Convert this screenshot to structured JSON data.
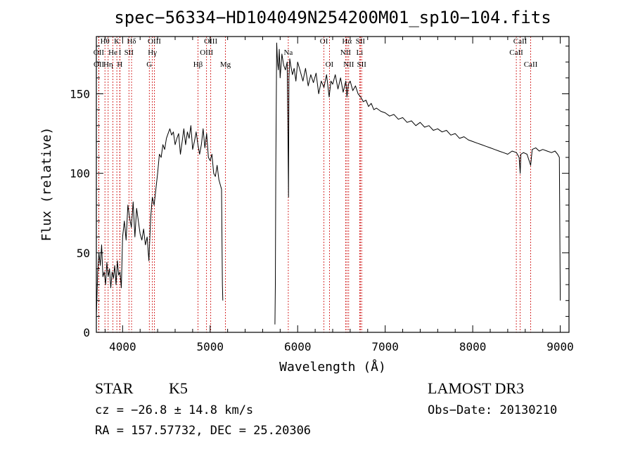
{
  "chart_data": {
    "type": "line",
    "title": "spec−56334−HD104049N254200M01_sp10−104.fits",
    "xlabel": "Wavelength (Å)",
    "ylabel": "Flux (relative)",
    "xlim": [
      3700,
      9100
    ],
    "ylim": [
      0,
      186
    ],
    "xticks": [
      4000,
      5000,
      6000,
      7000,
      8000,
      9000
    ],
    "yticks": [
      0,
      50,
      100,
      150
    ],
    "grid": false,
    "series": [
      {
        "name": "flux",
        "segments": [
          {
            "x": [
              3700,
              3715,
              3730,
              3745,
              3760,
              3775,
              3790,
              3805,
              3820,
              3835,
              3850,
              3865,
              3880,
              3895,
              3910,
              3925,
              3940,
              3955,
              3970,
              3985,
              4000,
              4020,
              4040,
              4060,
              4080,
              4100,
              4120,
              4140,
              4160,
              4180,
              4200,
              4220,
              4240,
              4260,
              4280,
              4300,
              4320,
              4340,
              4360,
              4380,
              4400,
              4420,
              4440,
              4460,
              4480,
              4500,
              4520,
              4540,
              4560,
              4580,
              4600,
              4620,
              4640,
              4660,
              4680,
              4700,
              4720,
              4740,
              4760,
              4780,
              4800,
              4820,
              4840,
              4860,
              4880,
              4900,
              4920,
              4940,
              4960,
              4980,
              5000,
              5020,
              5040,
              5060,
              5080,
              5100,
              5120,
              5130,
              5135,
              5140,
              5145
            ],
            "y": [
              10,
              38,
              50,
              42,
              55,
              35,
              38,
              30,
              44,
              35,
              40,
              28,
              38,
              34,
              42,
              30,
              45,
              36,
              38,
              28,
              60,
              70,
              58,
              80,
              72,
              66,
              82,
              60,
              78,
              70,
              62,
              58,
              65,
              55,
              60,
              45,
              72,
              85,
              80,
              90,
              100,
              112,
              110,
              118,
              115,
              122,
              125,
              128,
              124,
              126,
              118,
              122,
              125,
              112,
              120,
              128,
              118,
              126,
              122,
              130,
              115,
              120,
              126,
              118,
              112,
              118,
              128,
              116,
              125,
              110,
              108,
              112,
              100,
              98,
              105,
              96,
              92,
              90,
              60,
              30,
              20
            ]
          },
          {
            "x": [
              5740,
              5745,
              5750,
              5760,
              5770,
              5780,
              5790,
              5800,
              5820,
              5840,
              5860,
              5880,
              5890,
              5895,
              5900,
              5910,
              5920,
              5940,
              5960,
              5980,
              6000,
              6030,
              6060,
              6090,
              6120,
              6150,
              6180,
              6210,
              6240,
              6270,
              6300,
              6330,
              6360,
              6380,
              6400,
              6430,
              6460,
              6490,
              6520,
              6550,
              6563,
              6580,
              6600,
              6630,
              6660,
              6690,
              6720,
              6750,
              6780,
              6810,
              6840,
              6870,
              6900,
              6950,
              7000,
              7050,
              7100,
              7150,
              7200,
              7250,
              7300,
              7350,
              7400,
              7450,
              7500,
              7550,
              7600,
              7650,
              7700,
              7750,
              7800,
              7850,
              7900,
              7950,
              8000,
              8050,
              8100,
              8150,
              8200,
              8250,
              8300,
              8350,
              8400,
              8450,
              8500,
              8530,
              8542,
              8550,
              8580,
              8620,
              8662,
              8680,
              8720,
              8760,
              8800,
              8850,
              8900,
              8940,
              8970,
              8990,
              9000
            ],
            "y": [
              5,
              30,
              100,
              182,
              170,
              165,
              178,
              160,
              175,
              168,
              165,
              170,
              120,
              85,
              160,
              172,
              168,
              162,
              166,
              158,
              170,
              164,
              158,
              166,
              155,
              162,
              157,
              163,
              150,
              158,
              154,
              162,
              148,
              158,
              156,
              162,
              153,
              160,
              151,
              158,
              148,
              156,
              158,
              152,
              155,
              150,
              148,
              145,
              146,
              142,
              144,
              140,
              141,
              139,
              138,
              136,
              137,
              134,
              135,
              132,
              133,
              130,
              132,
              129,
              130,
              127,
              128,
              126,
              127,
              124,
              125,
              122,
              123,
              121,
              120,
              119,
              118,
              117,
              116,
              115,
              114,
              113,
              112,
              114,
              113,
              110,
              100,
              112,
              113,
              112,
              105,
              115,
              116,
              114,
              115,
              114,
              113,
              114,
              112,
              110,
              20
            ]
          }
        ]
      }
    ],
    "line_markers": [
      {
        "label": "Hθ",
        "wavelength": 3798,
        "row": 1
      },
      {
        "label": "OII",
        "wavelength": 3727,
        "row": 2
      },
      {
        "label": "OII",
        "wavelength": 3729,
        "row": 3
      },
      {
        "label": "He",
        "wavelength": 3889,
        "row": 2
      },
      {
        "label": "K",
        "wavelength": 3934,
        "row": 1
      },
      {
        "label": "Hη",
        "wavelength": 3835,
        "row": 3
      },
      {
        "label": "H",
        "wavelength": 3968,
        "row": 3
      },
      {
        "label": "I",
        "wavelength": 3970,
        "row": 2
      },
      {
        "label": "SII",
        "wavelength": 4072,
        "row": 2
      },
      {
        "label": "Hδ",
        "wavelength": 4102,
        "row": 1
      },
      {
        "label": "OIII",
        "wavelength": 4363,
        "row": 1
      },
      {
        "label": "Hγ",
        "wavelength": 4340,
        "row": 2
      },
      {
        "label": "G",
        "wavelength": 4305,
        "row": 3
      },
      {
        "label": "Hβ",
        "wavelength": 4861,
        "row": 3
      },
      {
        "label": "OIII",
        "wavelength": 4959,
        "row": 2
      },
      {
        "label": "OIII",
        "wavelength": 5007,
        "row": 1
      },
      {
        "label": "Mg",
        "wavelength": 5175,
        "row": 3
      },
      {
        "label": "Na",
        "wavelength": 5893,
        "row": 2
      },
      {
        "label": "OI",
        "wavelength": 6300,
        "row": 1
      },
      {
        "label": "OI",
        "wavelength": 6363,
        "row": 3
      },
      {
        "label": "Hα",
        "wavelength": 6563,
        "row": 1
      },
      {
        "label": "NII",
        "wavelength": 6548,
        "row": 2
      },
      {
        "label": "NII",
        "wavelength": 6583,
        "row": 3
      },
      {
        "label": "SII",
        "wavelength": 6716,
        "row": 1
      },
      {
        "label": "Li",
        "wavelength": 6708,
        "row": 2
      },
      {
        "label": "SII",
        "wavelength": 6731,
        "row": 3
      },
      {
        "label": "CaII",
        "wavelength": 8542,
        "row": 1
      },
      {
        "label": "CaII",
        "wavelength": 8498,
        "row": 2
      },
      {
        "label": "CaII",
        "wavelength": 8662,
        "row": 3
      }
    ]
  },
  "info": {
    "class_label": "STAR",
    "subclass": "K5",
    "cz": "cz = −26.8 ± 14.8 km/s",
    "coords": "RA = 157.57732, DEC =  25.20306",
    "survey": "LAMOST DR3",
    "obs_date": "Obs−Date: 20130210"
  },
  "colors": {
    "line": "#000000",
    "marker": "#cc0000",
    "background": "#ffffff"
  }
}
